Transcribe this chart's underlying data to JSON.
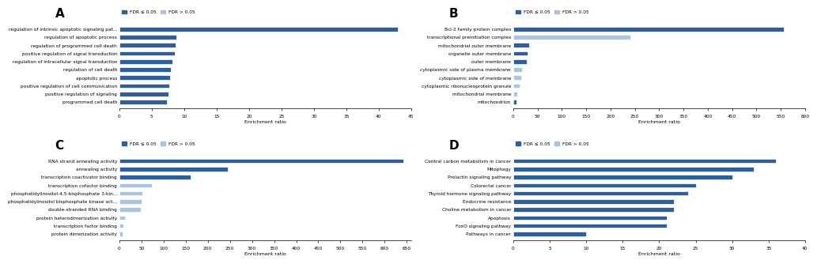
{
  "panel_A": {
    "title": "A",
    "xlabel": "Enrichment ratio",
    "xlim": [
      0,
      45
    ],
    "xticks": [
      0,
      5,
      10,
      15,
      20,
      25,
      30,
      35,
      40,
      45
    ],
    "categories": [
      "regulation of intrinsic apoptotic signaling pat...",
      "regulation of apoptotic process",
      "regulation of programmed cell death",
      "positive regulation of signal transduction",
      "regulation of intracellular signal transduction",
      "regulation of cell death",
      "apoptotic process",
      "positive regulation of cell communication",
      "positive regulation of signaling",
      "programmed cell death"
    ],
    "values": [
      43.0,
      8.8,
      8.7,
      8.5,
      8.2,
      7.9,
      7.8,
      7.7,
      7.6,
      7.3
    ],
    "colors": [
      "#2e5e9e",
      "#2e5e9e",
      "#2e5e9e",
      "#2e5e9e",
      "#2e5e9e",
      "#2e5e9e",
      "#2e5e9e",
      "#2e5e9e",
      "#2e5e9e",
      "#2e5e9e"
    ]
  },
  "panel_B": {
    "title": "B",
    "xlabel": "Enrichment ratio",
    "xlim": [
      0,
      600
    ],
    "xticks": [
      0,
      50,
      100,
      150,
      200,
      250,
      300,
      350,
      400,
      450,
      500,
      550,
      600
    ],
    "categories": [
      "Bcl-2 family protein complex",
      "transcriptional preinitiation complex",
      "mitochondrial outer membrane",
      "organelle outer membrane",
      "outer membrane",
      "cytoplasmic side of plasma membrane",
      "cytoplasmic side of membrane",
      "cytoplasmic ribonucleoprotein granule",
      "mitochondrial membrane",
      "mitochondrion"
    ],
    "values": [
      557,
      240,
      32,
      29,
      27,
      18,
      17,
      13,
      8,
      7
    ],
    "colors": [
      "#2e5e9e",
      "#a8c4e0",
      "#2e5e9e",
      "#2e5e9e",
      "#2e5e9e",
      "#a8c4e0",
      "#a8c4e0",
      "#a8c4e0",
      "#a8c4e0",
      "#2e5e9e"
    ]
  },
  "panel_C": {
    "title": "C",
    "xlabel": "Enrichment ratio",
    "xlim": [
      0,
      660
    ],
    "xticks": [
      0,
      50,
      100,
      150,
      200,
      250,
      300,
      350,
      400,
      450,
      500,
      550,
      600,
      650
    ],
    "categories": [
      "RNA strand annealing activity",
      "annealing activity",
      "transcription coactivator binding",
      "transcription cofactor binding",
      "phosphatidylinositol-4,5-bisphosphate 3-kin...",
      "phosphatidylinositol bisphosphate kinase act...",
      "double-stranded RNA binding",
      "protein heterodimerization activity",
      "transcription factor binding",
      "protein dimerization activity"
    ],
    "values": [
      643,
      245,
      162,
      73,
      52,
      50,
      48,
      12,
      10,
      8
    ],
    "colors": [
      "#2e5e9e",
      "#2e5e9e",
      "#2e5e9e",
      "#a8c4e0",
      "#a8c4e0",
      "#a8c4e0",
      "#a8c4e0",
      "#a8c4e0",
      "#a8c4e0",
      "#a8c4e0"
    ]
  },
  "panel_D": {
    "title": "D",
    "xlabel": "Enrichment ratio",
    "xlim": [
      0,
      40
    ],
    "xticks": [
      0,
      5,
      10,
      15,
      20,
      25,
      30,
      35,
      40
    ],
    "categories": [
      "Central carbon metabolism in cancer",
      "Mitophagy",
      "Prolactin signaling pathway",
      "Colorectal cancer",
      "Thyroid hormone signaling pathway",
      "Endocrine resistance",
      "Choline metabolism in cancer",
      "Apoptosis",
      "FoxO signaling pathway",
      "Pathways in cancer"
    ],
    "values": [
      36,
      33,
      30,
      25,
      24,
      22,
      22,
      21,
      21,
      10
    ],
    "colors": [
      "#2e5e9e",
      "#2e5e9e",
      "#2e5e9e",
      "#2e5e9e",
      "#2e5e9e",
      "#2e5e9e",
      "#2e5e9e",
      "#2e5e9e",
      "#2e5e9e",
      "#2e5e9e"
    ]
  },
  "color_fdr_low": "#2e5e9e",
  "color_fdr_high": "#a8c4e0",
  "legend_label_low": "FDR ≤ 0.05",
  "legend_label_high": "FDR > 0.05",
  "bg_color": "#ffffff"
}
